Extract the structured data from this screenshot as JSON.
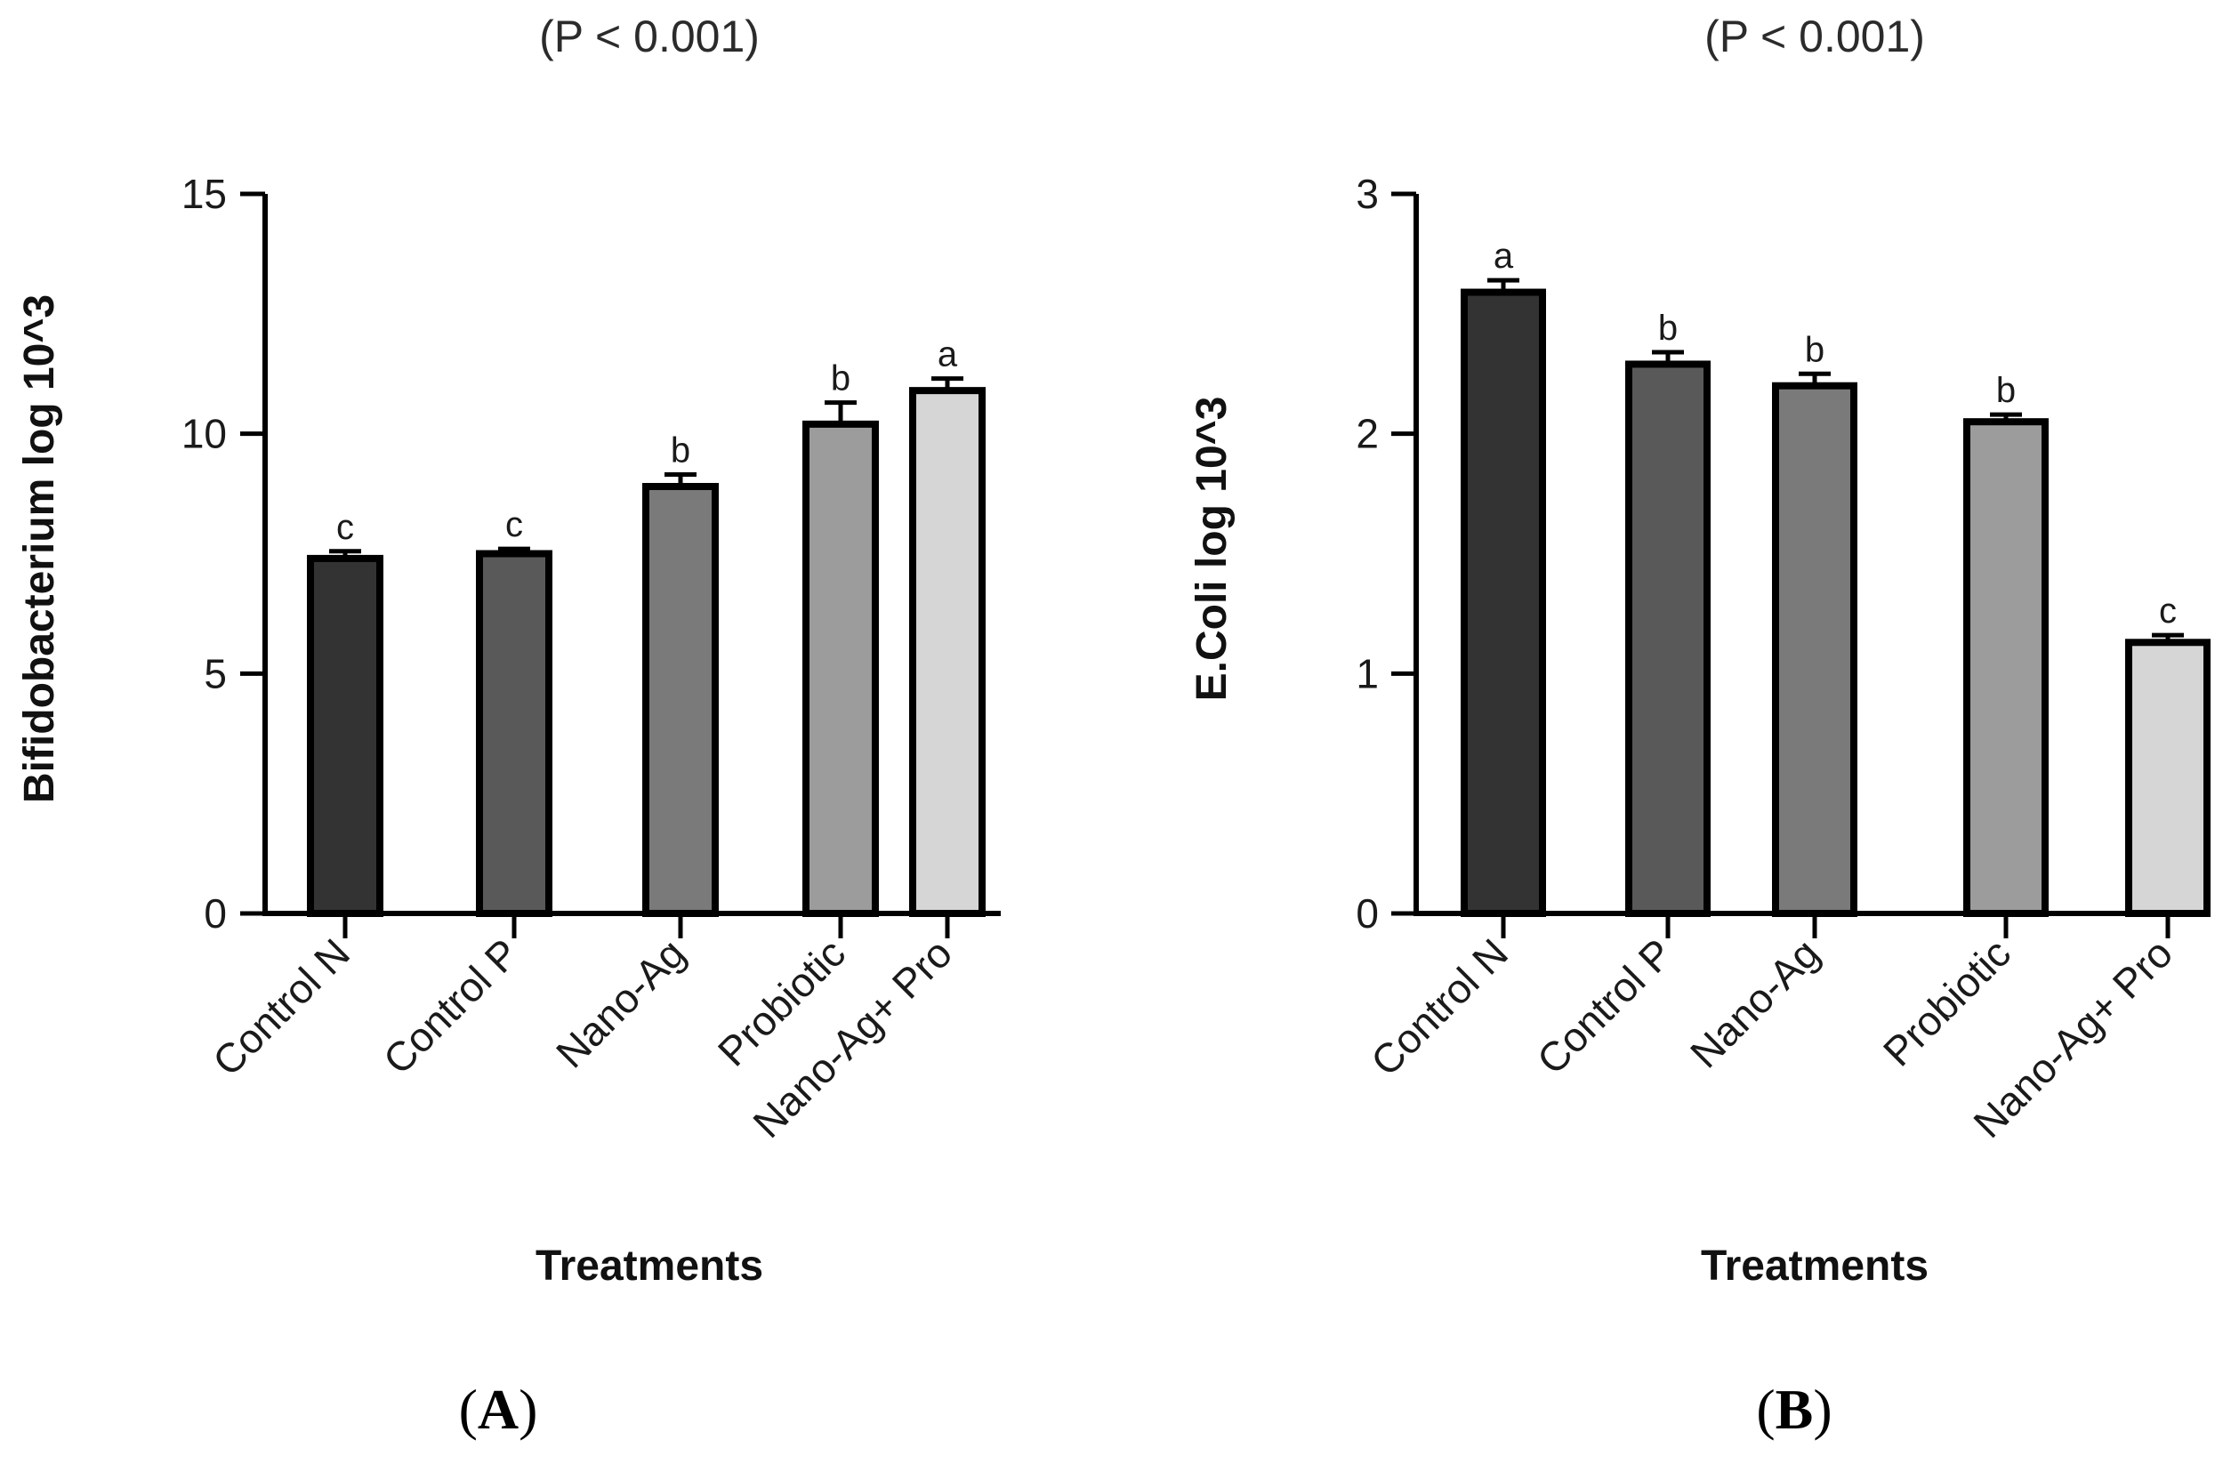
{
  "chart_data": [
    {
      "type": "bar",
      "panel_label": "A",
      "title": "(P < 0.001)",
      "xlabel": "Treatments",
      "ylabel": "Bifidobacterium log 10^3",
      "ylim": [
        0,
        15
      ],
      "yticks": [
        "0",
        "5",
        "10",
        "15"
      ],
      "categories": [
        "Control N",
        "Control P",
        "Nano-Ag",
        "Probiotic",
        "Nano-Ag+ Pro"
      ],
      "values": [
        7.4,
        7.5,
        8.9,
        10.2,
        10.9
      ],
      "errors": [
        0.15,
        0.1,
        0.25,
        0.45,
        0.25
      ],
      "significance": [
        "c",
        "c",
        "b",
        "b",
        "a"
      ],
      "colors": [
        "#333333",
        "#595959",
        "#7a7a7a",
        "#9c9c9c",
        "#d6d6d6"
      ],
      "grid": false
    },
    {
      "type": "bar",
      "panel_label": "B",
      "title": "(P < 0.001)",
      "xlabel": "Treatments",
      "ylabel": "E.Coli log 10^3",
      "ylim": [
        0,
        3
      ],
      "yticks": [
        "0",
        "1",
        "2",
        "3"
      ],
      "categories": [
        "Control N",
        "Control P",
        "Nano-Ag",
        "Probiotic",
        "Nano-Ag+ Pro"
      ],
      "values": [
        2.59,
        2.29,
        2.2,
        2.05,
        1.13
      ],
      "errors": [
        0.05,
        0.05,
        0.05,
        0.03,
        0.03
      ],
      "significance": [
        "a",
        "b",
        "b",
        "b",
        "c"
      ],
      "colors": [
        "#333333",
        "#595959",
        "#7a7a7a",
        "#9c9c9c",
        "#d6d6d6"
      ],
      "grid": false
    }
  ]
}
